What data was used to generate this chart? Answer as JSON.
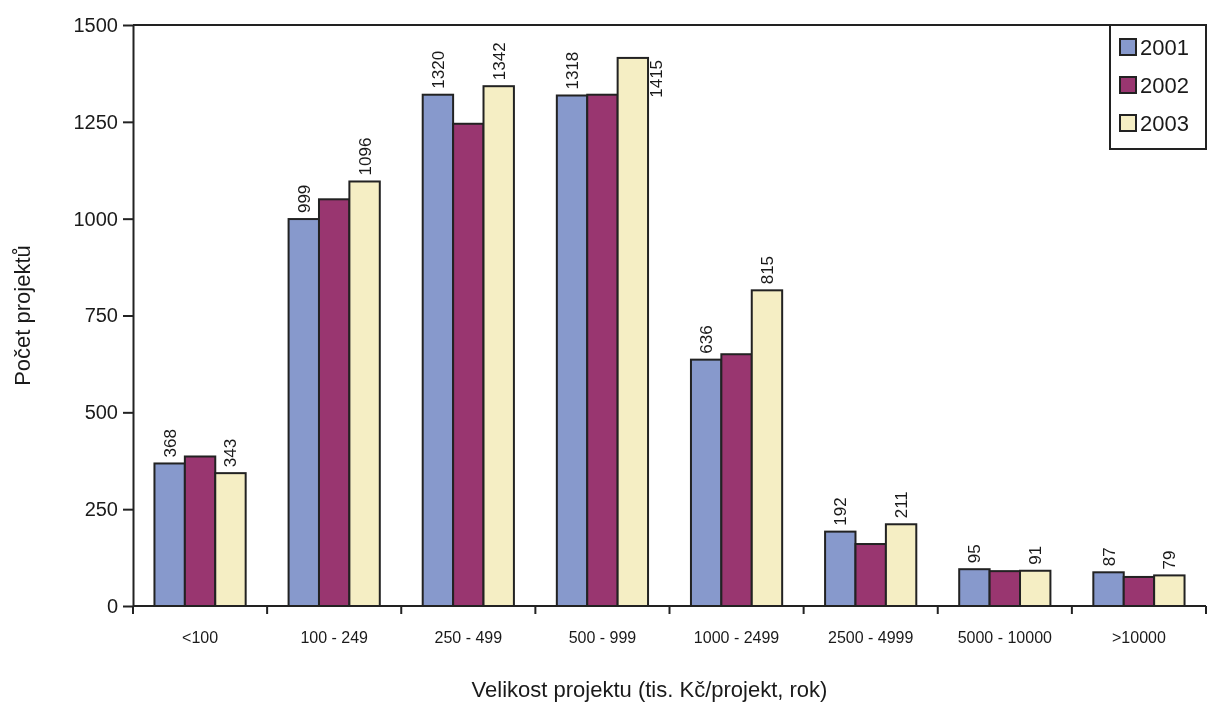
{
  "chart_data": {
    "type": "bar",
    "xlabel": "Velikost projektu (tis. Kč/projekt, rok)",
    "ylabel": "Počet projektů",
    "categories": [
      "<100",
      "100 - 249",
      "250 - 499",
      "500 - 999",
      "1000 - 2499",
      "2500 - 4999",
      "5000 - 10000",
      ">10000"
    ],
    "series": [
      {
        "name": "2001",
        "color": "#8799cc",
        "values": [
          368,
          999,
          1320,
          1318,
          636,
          192,
          95,
          87
        ],
        "value_labels": [
          "368",
          "999",
          "1320",
          "1318",
          "636",
          "192",
          "95",
          "87"
        ]
      },
      {
        "name": "2002",
        "color": "#993670",
        "values": [
          386,
          1050,
          1245,
          1320,
          650,
          160,
          90,
          75
        ]
      },
      {
        "name": "2003",
        "color": "#f5eec4",
        "values": [
          343,
          1096,
          1342,
          1415,
          815,
          211,
          91,
          79
        ],
        "value_labels": [
          "343",
          "1096",
          "1342",
          "1415",
          "815",
          "211",
          "91",
          "79"
        ]
      }
    ],
    "ylim": [
      0,
      1500
    ],
    "yticks": [
      0,
      250,
      500,
      750,
      1000,
      1250,
      1500
    ],
    "grid": false,
    "legend": "top right"
  }
}
